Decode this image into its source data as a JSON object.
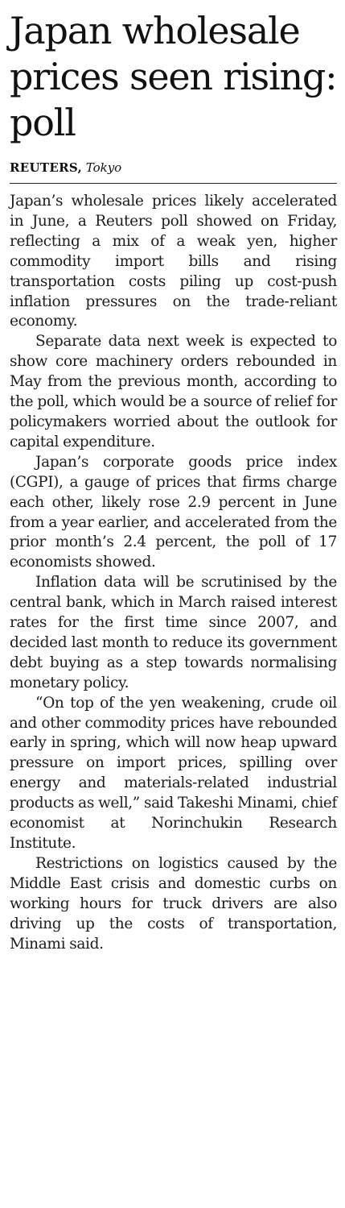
{
  "article": {
    "headline": "Japan wholesale prices seen rising: poll",
    "byline": {
      "agency": "REUTERS,",
      "location": "Tokyo"
    },
    "paragraphs": [
      "Japan’s wholesale prices likely accelerated in June, a Reuters poll showed on Friday, reflecting a mix of a weak yen, higher commodity import bills and rising transportation costs piling up cost-push inflation pressures on the trade-reliant economy.",
      "Separate data next week is expected to show core machinery orders rebounded in May from the previous month, according to the poll, which would be a source of relief for policymakers worried about the outlook for capital expenditure.",
      "Japan’s corporate goods price index (CGPI), a gauge of prices that firms charge each other, likely rose 2.9 percent in June from a year earlier, and accelerated from the prior month’s 2.4 percent, the poll of 17 economists showed.",
      "Inflation data will be scrutinised by the central bank, which in March raised interest rates for the first time since 2007, and decided last month to reduce its government debt buying as a step towards normalising monetary policy.",
      "“On top of the yen weakening, crude oil and other commodity prices have rebounded early in spring, which will now heap upward pressure on import prices, spilling over energy and materials-related industrial products as well,” said Takeshi Minami, chief economist at Norinchukin Research Institute.",
      "Restrictions on logistics caused by the Middle East crisis and domestic curbs on working hours for truck drivers are also driving up the costs of transportation, Minami said."
    ]
  }
}
